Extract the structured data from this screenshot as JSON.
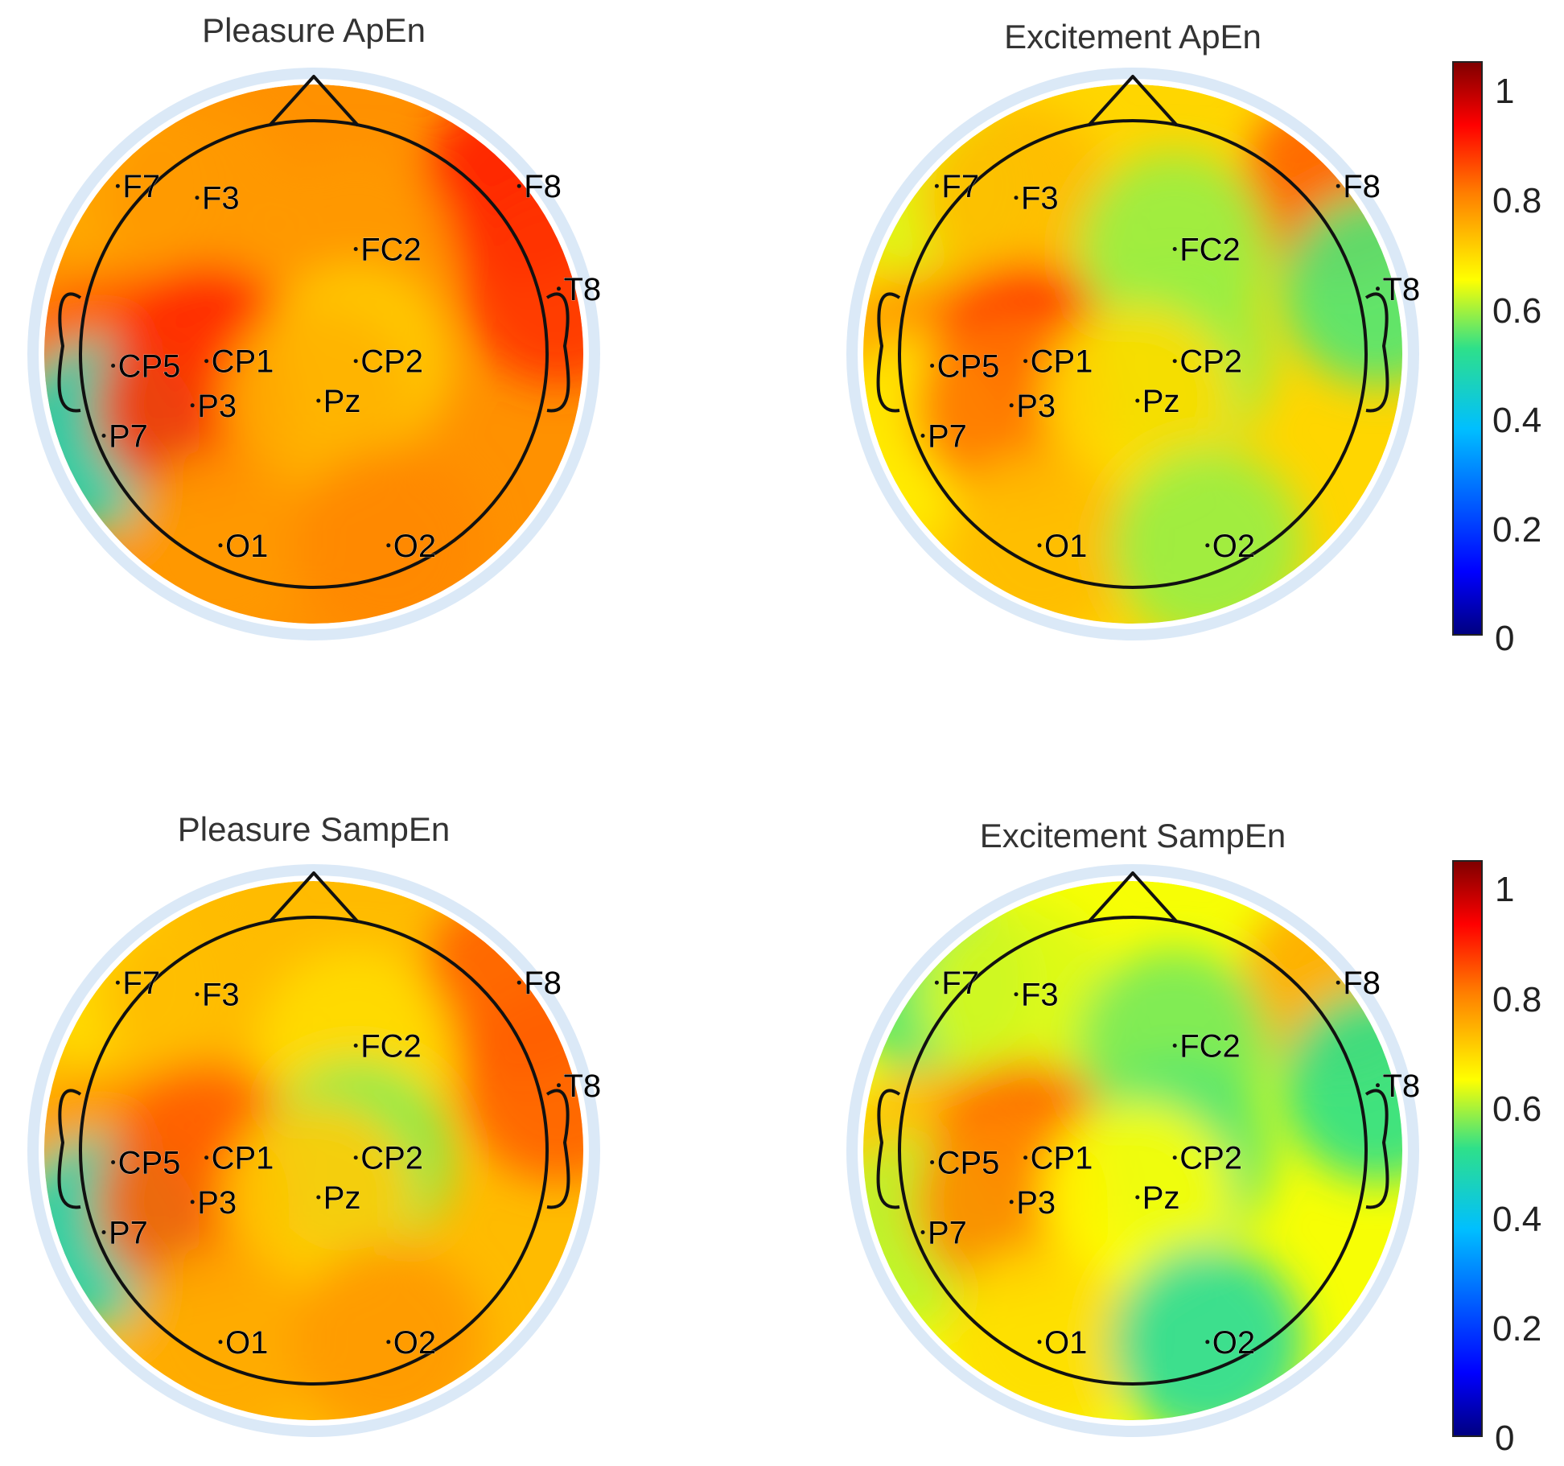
{
  "chart_data": [
    {
      "type": "heatmap",
      "subtype": "eeg-topographic-map",
      "title": "Pleasure ApEn",
      "electrodes": [
        {
          "label": "F7",
          "value": 0.72
        },
        {
          "label": "F3",
          "value": 0.74
        },
        {
          "label": "F8",
          "value": 0.86
        },
        {
          "label": "FC2",
          "value": 0.74
        },
        {
          "label": "T8",
          "value": 0.84
        },
        {
          "label": "CP5",
          "value": 0.8
        },
        {
          "label": "CP1",
          "value": 0.86
        },
        {
          "label": "CP2",
          "value": 0.68
        },
        {
          "label": "P7",
          "value": 0.45
        },
        {
          "label": "P3",
          "value": 0.84
        },
        {
          "label": "Pz",
          "value": 0.71
        },
        {
          "label": "O1",
          "value": 0.74
        },
        {
          "label": "O2",
          "value": 0.76
        }
      ],
      "colorbar": {
        "min": 0,
        "max": 1,
        "ticks": [
          "0",
          "0.2",
          "0.4",
          "0.6",
          "0.8",
          "1"
        ]
      }
    },
    {
      "type": "heatmap",
      "subtype": "eeg-topographic-map",
      "title": "Excitement ApEn",
      "electrodes": [
        {
          "label": "F7",
          "value": 0.6
        },
        {
          "label": "F3",
          "value": 0.7
        },
        {
          "label": "F8",
          "value": 0.8
        },
        {
          "label": "FC2",
          "value": 0.56
        },
        {
          "label": "T8",
          "value": 0.52
        },
        {
          "label": "CP5",
          "value": 0.74
        },
        {
          "label": "CP1",
          "value": 0.86
        },
        {
          "label": "CP2",
          "value": 0.56
        },
        {
          "label": "P7",
          "value": 0.64
        },
        {
          "label": "P3",
          "value": 0.78
        },
        {
          "label": "Pz",
          "value": 0.66
        },
        {
          "label": "O1",
          "value": 0.7
        },
        {
          "label": "O2",
          "value": 0.56
        }
      ],
      "colorbar": {
        "min": 0,
        "max": 1,
        "ticks": [
          "0",
          "0.2",
          "0.4",
          "0.6",
          "0.8",
          "1"
        ]
      }
    },
    {
      "type": "heatmap",
      "subtype": "eeg-topographic-map",
      "title": "Pleasure SampEn",
      "electrodes": [
        {
          "label": "F7",
          "value": 0.66
        },
        {
          "label": "F3",
          "value": 0.7
        },
        {
          "label": "F8",
          "value": 0.8
        },
        {
          "label": "FC2",
          "value": 0.66
        },
        {
          "label": "T8",
          "value": 0.8
        },
        {
          "label": "CP5",
          "value": 0.74
        },
        {
          "label": "CP1",
          "value": 0.8
        },
        {
          "label": "CP2",
          "value": 0.55
        },
        {
          "label": "P7",
          "value": 0.45
        },
        {
          "label": "P3",
          "value": 0.8
        },
        {
          "label": "Pz",
          "value": 0.68
        },
        {
          "label": "O1",
          "value": 0.72
        },
        {
          "label": "O2",
          "value": 0.74
        }
      ],
      "colorbar": {
        "min": 0,
        "max": 1,
        "ticks": [
          "0",
          "0.2",
          "0.4",
          "0.6",
          "0.8",
          "1"
        ]
      }
    },
    {
      "type": "heatmap",
      "subtype": "eeg-topographic-map",
      "title": "Excitement SampEn",
      "electrodes": [
        {
          "label": "F7",
          "value": 0.52
        },
        {
          "label": "F3",
          "value": 0.6
        },
        {
          "label": "F8",
          "value": 0.72
        },
        {
          "label": "FC2",
          "value": 0.54
        },
        {
          "label": "T8",
          "value": 0.5
        },
        {
          "label": "CP5",
          "value": 0.7
        },
        {
          "label": "CP1",
          "value": 0.8
        },
        {
          "label": "CP2",
          "value": 0.52
        },
        {
          "label": "P7",
          "value": 0.58
        },
        {
          "label": "P3",
          "value": 0.76
        },
        {
          "label": "Pz",
          "value": 0.62
        },
        {
          "label": "O1",
          "value": 0.66
        },
        {
          "label": "O2",
          "value": 0.48
        }
      ],
      "colorbar": {
        "min": 0,
        "max": 1,
        "ticks": [
          "0",
          "0.2",
          "0.4",
          "0.6",
          "0.8",
          "1"
        ]
      }
    }
  ],
  "colorscale": {
    "name": "jet",
    "stops": [
      "#00007f",
      "#0000ff",
      "#00bfff",
      "#2ee08a",
      "#ffff00",
      "#ff7f00",
      "#ff0000",
      "#7f0000"
    ]
  }
}
